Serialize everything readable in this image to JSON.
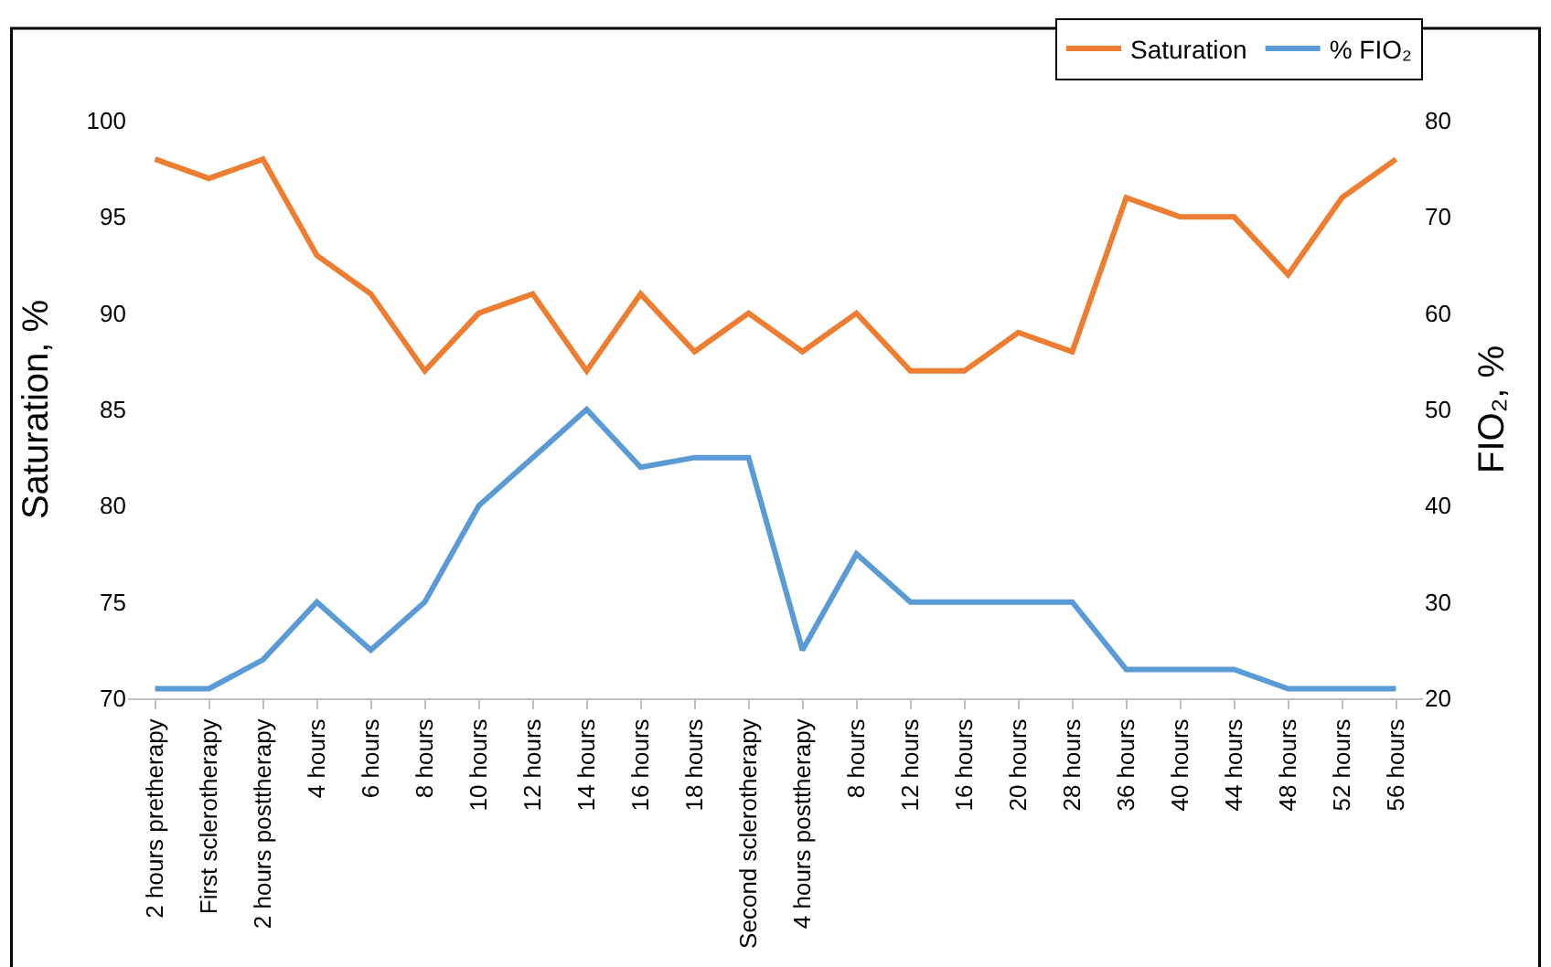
{
  "chart_data": {
    "type": "line",
    "categories": [
      "2 hours pretherapy",
      "First sclerotherapy",
      "2 hours posttherapy",
      "4 hours",
      "6 hours",
      "8 hours",
      "10 hours",
      "12 hours",
      "14 hours",
      "16 hours",
      "18 hours",
      "Second sclerotherapy",
      "4 hours posttherapy",
      "8 hours",
      "12 hours",
      "16 hours",
      "20 hours",
      "28 hours",
      "36 hours",
      "40 hours",
      "44 hours",
      "48 hours",
      "52 hours",
      "56 hours"
    ],
    "series": [
      {
        "name": "Saturation",
        "color": "#ed7d31",
        "values": [
          98,
          97,
          98,
          93,
          91,
          87,
          90,
          91,
          87,
          91,
          88,
          90,
          88,
          90,
          87,
          87,
          89,
          88,
          96,
          95,
          95,
          92,
          96,
          98
        ]
      },
      {
        "name": "% FIO₂",
        "color": "#5b9bd5",
        "axis": "y2",
        "values": [
          21,
          21,
          24,
          30,
          25,
          30,
          40,
          45,
          50,
          44,
          45,
          45,
          25,
          35,
          30,
          30,
          30,
          30,
          23,
          23,
          23,
          21,
          21,
          21
        ]
      }
    ],
    "ylabel": "Saturation, %",
    "y2label": "FIO₂, %",
    "ylim": [
      70,
      100
    ],
    "yticks": [
      70,
      75,
      80,
      85,
      90,
      95,
      100
    ],
    "y2lim": [
      20,
      80
    ],
    "y2ticks": [
      20,
      30,
      40,
      50,
      60,
      70,
      80
    ],
    "grid": false,
    "legend": "top right",
    "marker": "none",
    "line_style": "solid"
  }
}
